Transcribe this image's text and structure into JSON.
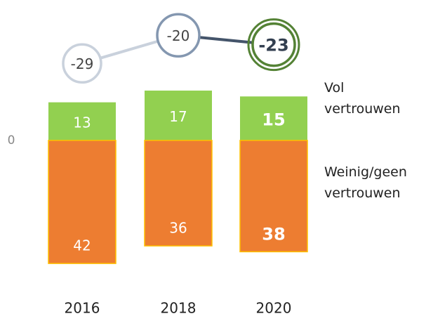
{
  "chart_data": {
    "type": "bar",
    "categories": [
      "2016",
      "2018",
      "2020"
    ],
    "series": [
      {
        "name": "Vol vertrouwen",
        "color": "#92d050",
        "values": [
          13,
          17,
          15
        ]
      },
      {
        "name": "Weinig/geen vertrouwen",
        "color": "#ed7d31",
        "values": [
          42,
          36,
          38
        ]
      },
      {
        "type": "line",
        "axis": "y2",
        "values": [
          -29,
          -20,
          -23
        ],
        "marker_colors": [
          "#c9d1dc",
          "#8497b0",
          "#548235"
        ],
        "line_colors": [
          "#c9d1dc",
          "#44546a"
        ]
      }
    ],
    "ylim": [
      -50,
      40
    ],
    "yticks": [
      0
    ],
    "y2lim": [
      -35,
      -15
    ]
  }
}
